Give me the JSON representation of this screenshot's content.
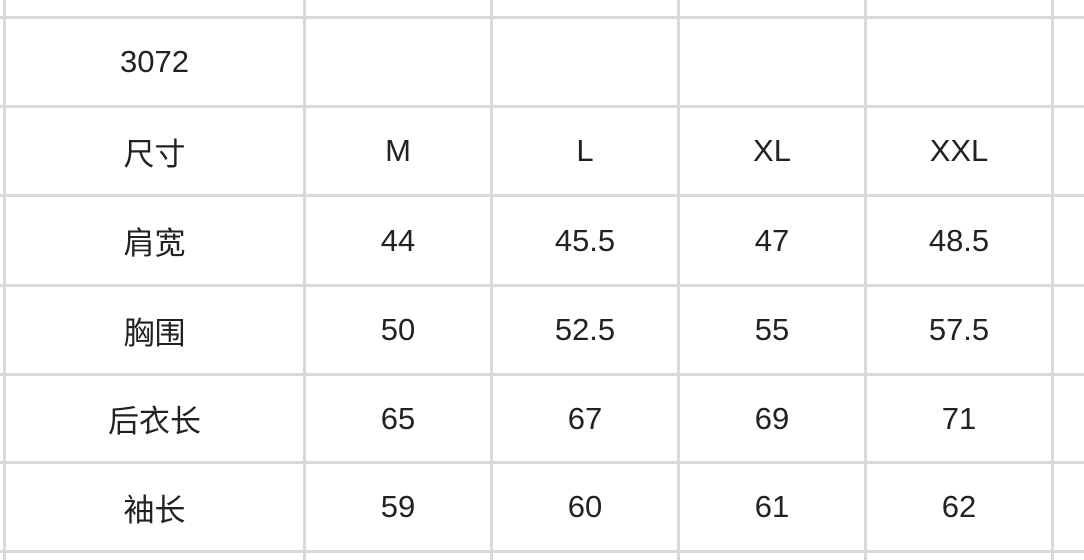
{
  "table": {
    "rows": [
      [
        "3072",
        "",
        "",
        "",
        ""
      ],
      [
        "尺寸",
        "M",
        "L",
        "XL",
        "XXL"
      ],
      [
        "肩宽",
        "44",
        "45.5",
        "47",
        "48.5"
      ],
      [
        "胸围",
        "50",
        "52.5",
        "55",
        "57.5"
      ],
      [
        "后衣长",
        "65",
        "67",
        "69",
        "71"
      ],
      [
        "袖长",
        "59",
        "60",
        "61",
        "62"
      ]
    ]
  },
  "colors": {
    "grid": "#d9d9d9",
    "text": "#222222"
  }
}
